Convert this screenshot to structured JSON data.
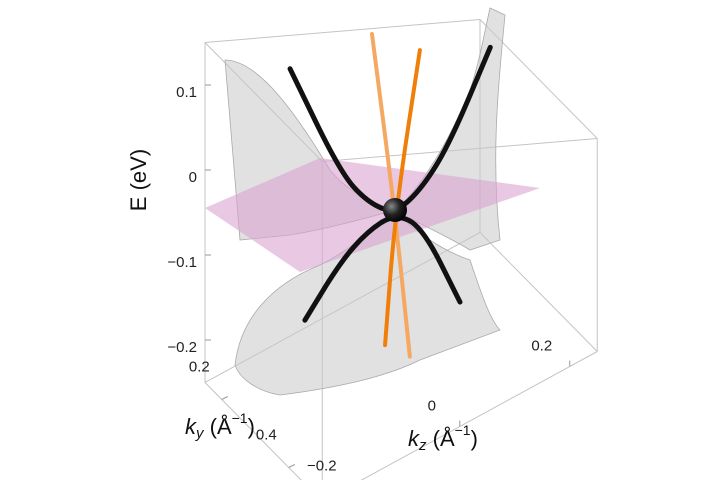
{
  "chart_data": {
    "type": "surface3d",
    "zlabel": "E (eV)",
    "xlabel": [
      "k",
      "z",
      " (Å",
      "−1",
      ")"
    ],
    "ylabel": [
      "k",
      "y",
      " (Å",
      "−1",
      ")"
    ],
    "xlim": [
      -0.25,
      0.25
    ],
    "ylim": [
      0.15,
      0.5
    ],
    "zlim": [
      -0.25,
      0.15
    ],
    "xticks": [
      {
        "value": -0.2,
        "label": "−0.2"
      },
      0,
      0.2
    ],
    "yticks": [
      0.2,
      0.4
    ],
    "zticks": [
      0.1,
      0,
      {
        "value": -0.1,
        "label": "−0.1"
      },
      {
        "value": -0.2,
        "label": "−0.2"
      }
    ],
    "series": [
      {
        "color": "#111111",
        "ky": 0.307,
        "x": [
          -0.191,
          -0.1,
          -0.05,
          0,
          0.05,
          0.1,
          0.173
        ],
        "values": [
          0.18,
          0.04,
          -0.01,
          -0.037,
          -0.01,
          0.05,
          0.2
        ]
      },
      {
        "color": "#111111",
        "ky": 0.307,
        "x": [
          -0.164,
          -0.1,
          -0.05,
          0,
          0.05,
          0.118
        ],
        "values": [
          -0.137,
          -0.08,
          -0.05,
          -0.037,
          -0.07,
          -0.212
        ]
      },
      {
        "color": "#f4a862",
        "kz": 0,
        "y": [
          0.238,
          0.307,
          0.351
        ],
        "values": [
          0.189,
          -0.037,
          -0.222
        ]
      },
      {
        "color": "#f07f09",
        "kz": 0,
        "y": [
          0.381,
          0.307,
          0.277
        ],
        "values": [
          0.236,
          -0.037,
          -0.242
        ]
      }
    ]
  }
}
